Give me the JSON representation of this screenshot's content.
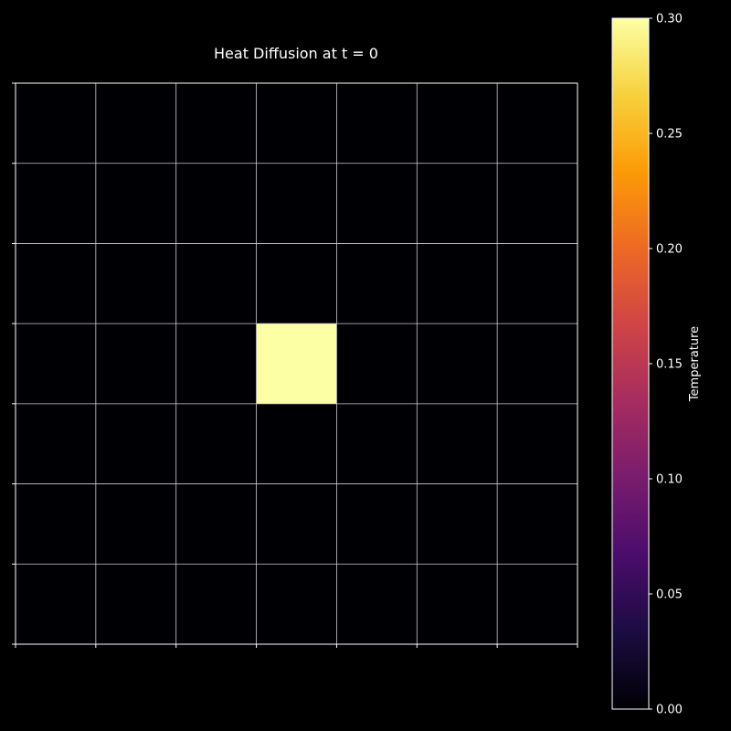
{
  "chart_data": {
    "type": "heatmap",
    "title": "Heat Diffusion at t = 0",
    "grid": true,
    "rows": 7,
    "cols": 7,
    "values": [
      [
        0,
        0,
        0,
        0,
        0,
        0,
        0
      ],
      [
        0,
        0,
        0,
        0,
        0,
        0,
        0
      ],
      [
        0,
        0,
        0,
        0,
        0,
        0,
        0
      ],
      [
        0,
        0,
        0,
        1,
        0,
        0,
        0
      ],
      [
        0,
        0,
        0,
        0,
        0,
        0,
        0
      ],
      [
        0,
        0,
        0,
        0,
        0,
        0,
        0
      ],
      [
        0,
        0,
        0,
        0,
        0,
        0,
        0
      ]
    ],
    "colorbar": {
      "label": "Temperature",
      "vmin": 0.0,
      "vmax": 0.3,
      "ticks": [
        "0.00",
        "0.05",
        "0.10",
        "0.15",
        "0.20",
        "0.25",
        "0.30"
      ],
      "colormap": "inferno",
      "colors": [
        "#000004",
        "#1b0c41",
        "#4a0c6b",
        "#781c6d",
        "#a52c60",
        "#cf4446",
        "#ed6925",
        "#fb9b06",
        "#f7d13d",
        "#fcffa4"
      ]
    },
    "background": "#000000",
    "gridline_color": "#cccccc"
  }
}
